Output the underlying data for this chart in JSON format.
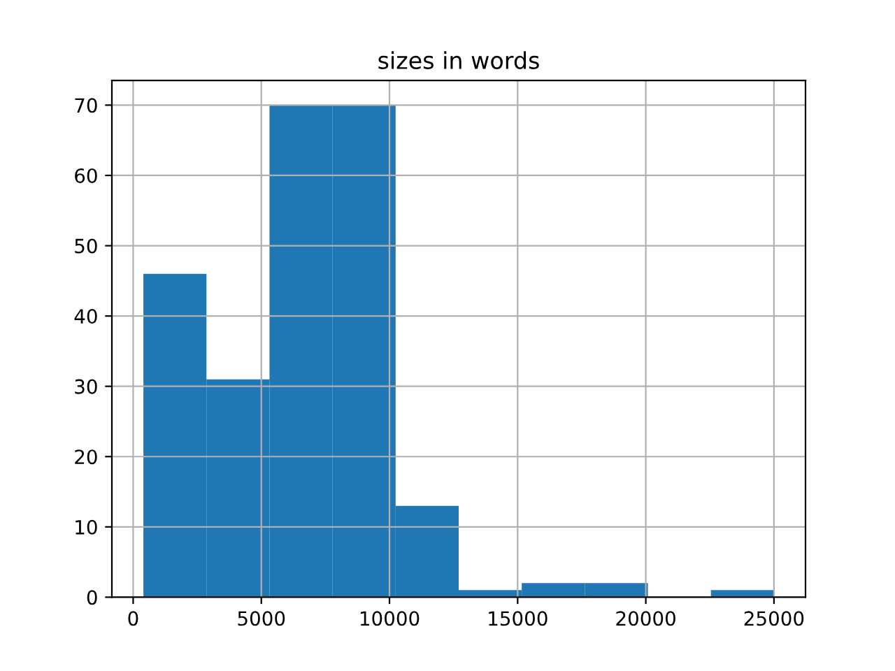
{
  "chart_data": {
    "type": "histogram",
    "title": "sizes in words",
    "bins": [
      400,
      2860,
      5320,
      7780,
      10240,
      12700,
      15160,
      17620,
      20080,
      22540,
      25000
    ],
    "values": [
      46,
      31,
      70,
      70,
      13,
      1,
      2,
      2,
      0,
      1
    ],
    "color": "#1f77b4",
    "xlim": [
      -830,
      26230
    ],
    "xticks": [
      0,
      5000,
      10000,
      15000,
      20000,
      25000
    ],
    "ylim": [
      0,
      73.5
    ],
    "yticks": [
      0,
      10,
      20,
      30,
      40,
      50,
      60,
      70
    ],
    "grid": true
  }
}
